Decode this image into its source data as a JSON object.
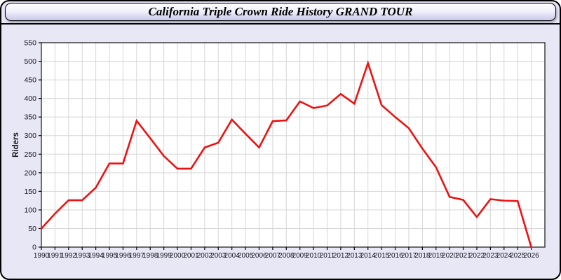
{
  "page": {
    "title": "California Triple Crown Ride History GRAND TOUR"
  },
  "colors": {
    "page_background": "#e7e7f6",
    "page_border": "#000000",
    "titlebar_gradient_top": "#ffffff",
    "titlebar_gradient_bottom": "#c9c9eb",
    "plot_background": "#ffffff",
    "gridline": "#d6d6d6",
    "axis_frame": "#333333",
    "tick_label_color": "#16161e",
    "line_color": "#ee1111"
  },
  "chart_data": {
    "type": "line",
    "title": "California Triple Crown Ride History GRAND TOUR",
    "xlabel": "",
    "ylabel": "Riders",
    "x": [
      1990,
      1991,
      1992,
      1993,
      1994,
      1995,
      1996,
      1997,
      1998,
      1999,
      2000,
      2001,
      2002,
      2003,
      2004,
      2005,
      2006,
      2007,
      2008,
      2009,
      2010,
      2011,
      2012,
      2013,
      2014,
      2015,
      2016,
      2017,
      2018,
      2019,
      2020,
      2021,
      2022,
      2023,
      2024,
      2025,
      2026
    ],
    "series": [
      {
        "name": "Riders",
        "color": "#ee1111",
        "values": [
          50,
          90,
          126,
          126,
          160,
          225,
          225,
          340,
          293,
          245,
          211,
          211,
          268,
          281,
          343,
          305,
          268,
          339,
          341,
          392,
          374,
          381,
          412,
          386,
          495,
          382,
          350,
          320,
          265,
          215,
          135,
          127,
          81,
          129,
          125,
          124,
          0
        ]
      }
    ],
    "ylim": [
      0,
      550
    ],
    "ytick_step": 50,
    "grid": true,
    "legend_position": "none"
  }
}
